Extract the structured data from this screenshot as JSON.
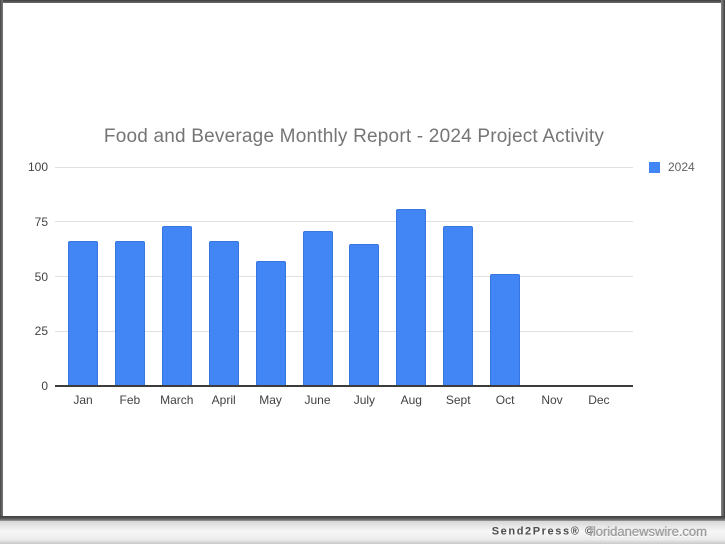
{
  "chart_data": {
    "type": "bar",
    "title": "Food and Beverage Monthly Report - 2024 Project Activity",
    "categories": [
      "Jan",
      "Feb",
      "March",
      "April",
      "May",
      "June",
      "July",
      "Aug",
      "Sept",
      "Oct",
      "Nov",
      "Dec"
    ],
    "series": [
      {
        "name": "2024",
        "values": [
          66,
          66,
          73,
          66,
          57,
          71,
          65,
          81,
          73,
          51,
          0,
          0
        ]
      }
    ],
    "xlabel": "",
    "ylabel": "",
    "ylim": [
      0,
      100
    ],
    "yticks": [
      0,
      25,
      50,
      75,
      100
    ],
    "grid": true,
    "legend_position": "top-right"
  },
  "colors": {
    "bar": "#4285f4",
    "title": "#757575",
    "axis_label": "#424242",
    "legend_label": "#616161",
    "gridline": "#e0e0e0",
    "baseline": "#3c3c3c"
  },
  "footer": {
    "brand": "Send2Press® ©",
    "site": "floridanewswire.com"
  }
}
